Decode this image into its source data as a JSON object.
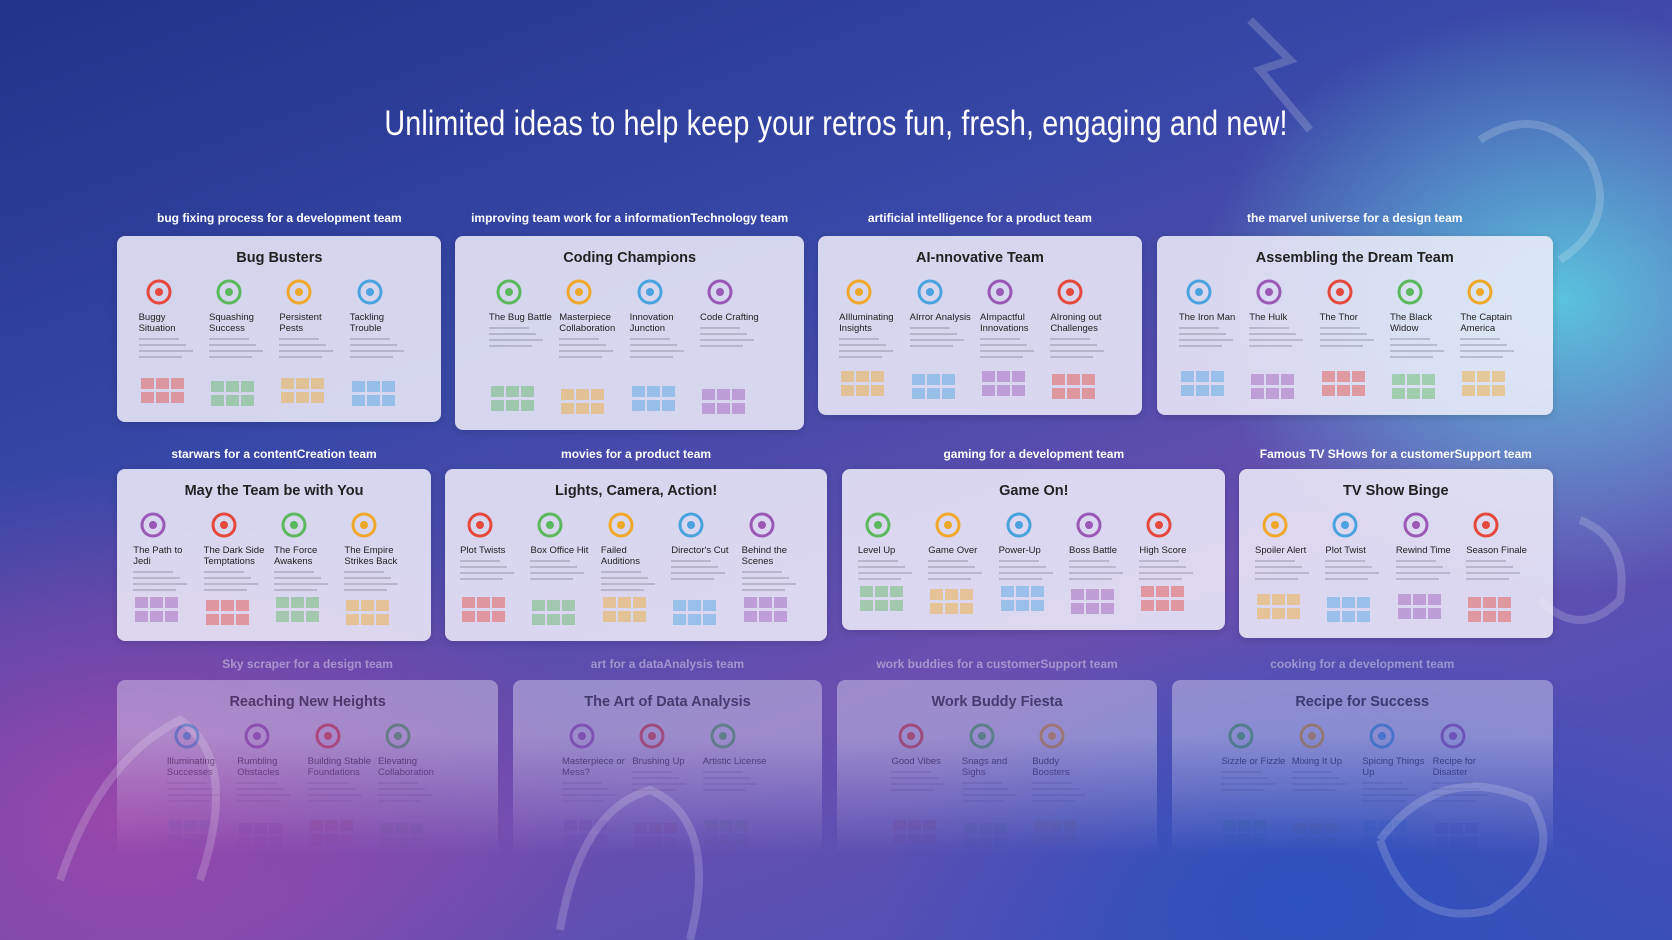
{
  "headline": "Unlimited ideas to help keep your retros fun, fresh, engaging and new!",
  "cards": [
    {
      "caption": "bug fixing process for a development team",
      "title": "Bug Busters",
      "columns": [
        "Buggy Situation",
        "Squashing Success",
        "Persistent Pests",
        "Tackling Trouble"
      ]
    },
    {
      "caption": "improving team work for a informationTechnology team",
      "title": "Coding Champions",
      "columns": [
        "The Bug Battle",
        "Masterpiece Collaboration",
        "Innovation Junction",
        "Code Crafting"
      ]
    },
    {
      "caption": "artificial intelligence for a product team",
      "title": "AI-nnovative Team",
      "columns": [
        "AIlluminating Insights",
        "AIrror Analysis",
        "AImpactful Innovations",
        "AIroning out Challenges"
      ]
    },
    {
      "caption": "the marvel universe for a design team",
      "title": "Assembling the Dream Team",
      "columns": [
        "The Iron Man",
        "The Hulk",
        "The Thor",
        "The Black Widow",
        "The Captain America"
      ]
    },
    {
      "caption": "starwars for a contentCreation team",
      "title": "May the Team be with You",
      "columns": [
        "The Path to Jedi",
        "The Dark Side Temptations",
        "The Force Awakens",
        "The Empire Strikes Back"
      ]
    },
    {
      "caption": "movies for a product team",
      "title": "Lights, Camera, Action!",
      "columns": [
        "Plot Twists",
        "Box Office Hit",
        "Failed Auditions",
        "Director's Cut",
        "Behind the Scenes"
      ]
    },
    {
      "caption": "gaming for a development team",
      "title": "Game On!",
      "columns": [
        "Level Up",
        "Game Over",
        "Power-Up",
        "Boss Battle",
        "High Score"
      ]
    },
    {
      "caption": "Famous TV SHows for a customerSupport team",
      "title": "TV Show Binge",
      "columns": [
        "Spoiler Alert",
        "Plot Twist",
        "Rewind Time",
        "Season Finale"
      ]
    },
    {
      "caption": "Sky scraper for a design team",
      "title": "Reaching New Heights",
      "columns": [
        "Illuminating Successes",
        "Rumbling Obstacles",
        "Building Stable Foundations",
        "Elevating Collaboration"
      ]
    },
    {
      "caption": "art for a dataAnalysis team",
      "title": "The Art of Data Analysis",
      "columns": [
        "Masterpiece or Mess?",
        "Brushing Up",
        "Artistic License"
      ]
    },
    {
      "caption": "work buddies for a customerSupport team",
      "title": "Work Buddy Fiesta",
      "columns": [
        "Good Vibes",
        "Snags and Sighs",
        "Buddy Boosters"
      ]
    },
    {
      "caption": "cooking for a development team",
      "title": "Recipe for Success",
      "columns": [
        "Sizzle or Fizzle",
        "Mixing It Up",
        "Spicing Things Up",
        "Recipe for Disaster"
      ]
    }
  ]
}
